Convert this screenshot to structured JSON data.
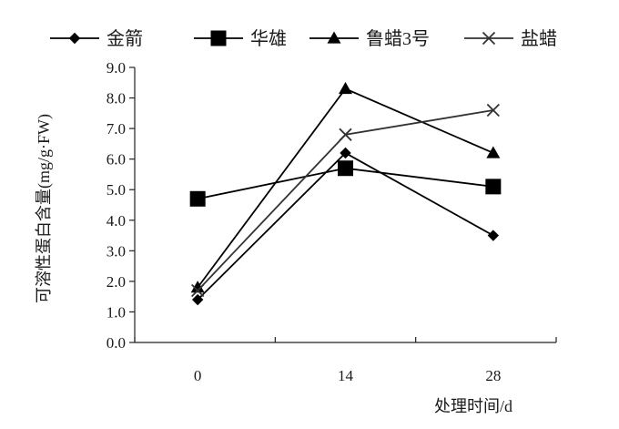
{
  "chart_data": {
    "type": "line",
    "title": "",
    "xlabel": "处理时间/d",
    "ylabel": "可溶性蛋白含量(mg/g·FW)",
    "categories": [
      "0",
      "14",
      "28"
    ],
    "ylim": [
      0,
      9
    ],
    "yticks": [
      "0.0",
      "1.0",
      "2.0",
      "3.0",
      "4.0",
      "5.0",
      "6.0",
      "7.0",
      "8.0",
      "9.0"
    ],
    "grid": false,
    "legend_position": "top",
    "series": [
      {
        "name": "金箭",
        "values": [
          1.4,
          6.2,
          3.5
        ],
        "marker": "diamond",
        "color": "#000000"
      },
      {
        "name": "华雄",
        "values": [
          4.7,
          5.7,
          5.1
        ],
        "marker": "square",
        "color": "#000000"
      },
      {
        "name": "鲁蜡3号",
        "values": [
          1.8,
          8.3,
          6.2
        ],
        "marker": "triangle",
        "color": "#000000"
      },
      {
        "name": "盐蜡",
        "values": [
          1.7,
          6.8,
          7.6
        ],
        "marker": "x",
        "color": "#333333"
      }
    ]
  }
}
